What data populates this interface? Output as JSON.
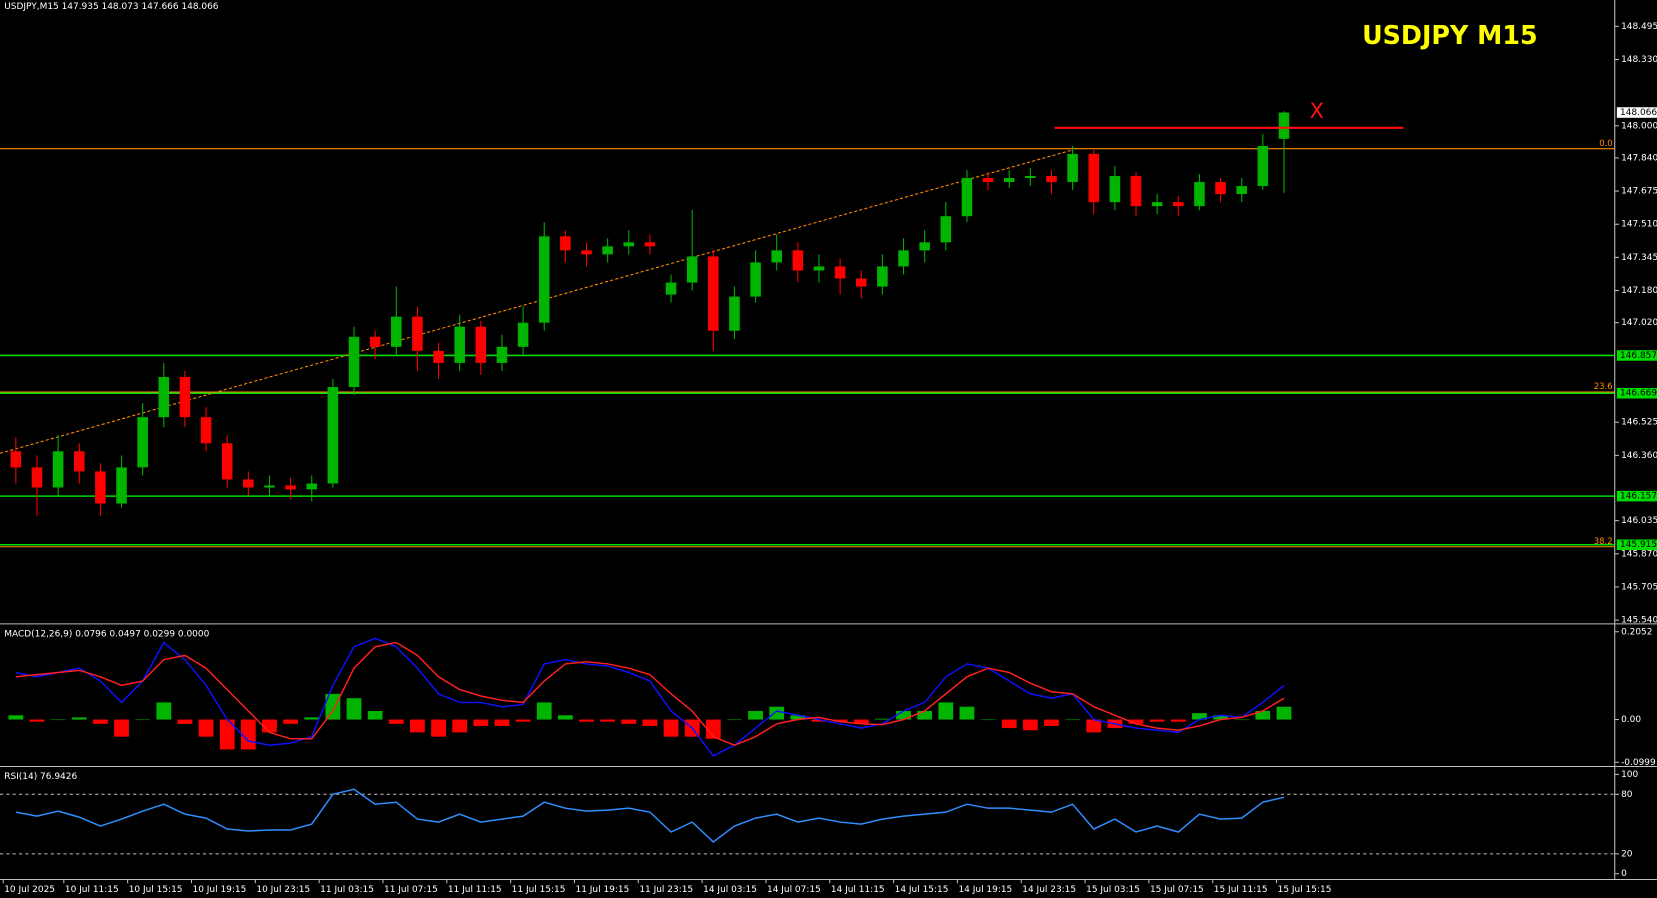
{
  "chart_data": {
    "type": "candlestick",
    "title": "USDJPY  M15",
    "header": "USDJPY,M15  147.935 148.073 147.666 148.066",
    "up_color": "#00b400",
    "down_color": "#ff0000",
    "ylim": [
      145.524,
      148.626
    ],
    "yticks": [
      148.495,
      {
        "value": 148.33,
        "label": "148.330"
      },
      {
        "value": 148,
        "label": "148.000"
      },
      {
        "value": 147.84,
        "label": "147.840"
      },
      147.675,
      {
        "value": 147.51,
        "label": "147.510"
      },
      147.345,
      {
        "value": 147.18,
        "label": "147.180"
      },
      {
        "value": 147.02,
        "label": "147.020"
      },
      146.525,
      {
        "value": 146.36,
        "label": "146.360"
      },
      146.035,
      {
        "value": 145.87,
        "label": "145.870"
      },
      145.705,
      {
        "value": 145.54,
        "label": "145.540"
      }
    ],
    "x_tick_labels": [
      "10 Jul 2025",
      "10 Jul 11:15",
      "10 Jul 15:15",
      "10 Jul 19:15",
      "10 Jul 23:15",
      "11 Jul 03:15",
      "11 Jul 07:15",
      "11 Jul 11:15",
      "11 Jul 15:15",
      "11 Jul 19:15",
      "11 Jul 23:15",
      "14 Jul 03:15",
      "14 Jul 07:15",
      "14 Jul 11:15",
      "14 Jul 15:15",
      "14 Jul 19:15",
      "14 Jul 23:15",
      "15 Jul 03:15",
      "15 Jul 07:15",
      "15 Jul 11:15",
      "15 Jul 15:15"
    ],
    "open": [
      146.38,
      146.3,
      146.2,
      146.38,
      146.28,
      146.12,
      146.3,
      146.55,
      146.75,
      146.55,
      146.42,
      146.24,
      146.2,
      146.21,
      146.19,
      146.22,
      146.7,
      146.95,
      146.9,
      147.05,
      146.88,
      146.82,
      147.0,
      146.82,
      146.9,
      147.02,
      147.45,
      147.38,
      147.36,
      147.4,
      147.42,
      147.16,
      147.22,
      147.35,
      146.98,
      147.15,
      147.32,
      147.38,
      147.28,
      147.3,
      147.24,
      147.2,
      147.3,
      147.38,
      147.42,
      147.55,
      147.74,
      147.72,
      147.74,
      147.75,
      147.72,
      147.86,
      147.62,
      147.75,
      147.6,
      147.62,
      147.6,
      147.72,
      147.66,
      147.7,
      147.935
    ],
    "high": [
      146.45,
      146.36,
      146.46,
      146.42,
      146.32,
      146.36,
      146.62,
      146.82,
      146.78,
      146.6,
      146.46,
      146.28,
      146.26,
      146.25,
      146.26,
      146.74,
      147.0,
      146.98,
      147.2,
      147.1,
      146.92,
      147.06,
      147.03,
      146.96,
      147.1,
      147.52,
      147.48,
      147.42,
      147.44,
      147.48,
      147.46,
      147.26,
      147.58,
      147.38,
      147.2,
      147.38,
      147.46,
      147.42,
      147.36,
      147.34,
      147.28,
      147.36,
      147.44,
      147.48,
      147.62,
      147.78,
      147.77,
      147.78,
      147.79,
      147.78,
      147.9,
      147.88,
      147.8,
      147.77,
      147.66,
      147.65,
      147.76,
      147.74,
      147.74,
      147.96,
      148.073
    ],
    "low": [
      146.22,
      146.06,
      146.16,
      146.22,
      146.06,
      146.1,
      146.26,
      146.5,
      146.5,
      146.38,
      146.2,
      146.16,
      146.16,
      146.14,
      146.13,
      146.2,
      146.66,
      146.84,
      146.86,
      146.78,
      146.74,
      146.78,
      146.76,
      146.78,
      146.86,
      146.98,
      147.32,
      147.3,
      147.32,
      147.36,
      147.36,
      147.12,
      147.18,
      146.88,
      146.94,
      147.12,
      147.28,
      147.22,
      147.22,
      147.16,
      147.14,
      147.16,
      147.26,
      147.32,
      147.38,
      147.52,
      147.68,
      147.69,
      147.7,
      147.66,
      147.68,
      147.56,
      147.58,
      147.55,
      147.56,
      147.55,
      147.58,
      147.62,
      147.62,
      147.68,
      147.666
    ],
    "close": [
      146.3,
      146.2,
      146.38,
      146.28,
      146.12,
      146.3,
      146.55,
      146.75,
      146.55,
      146.42,
      146.24,
      146.2,
      146.21,
      146.19,
      146.22,
      146.7,
      146.95,
      146.9,
      147.05,
      146.88,
      146.82,
      147.0,
      146.82,
      146.9,
      147.02,
      147.45,
      147.38,
      147.36,
      147.4,
      147.42,
      147.4,
      147.22,
      147.35,
      146.98,
      147.15,
      147.32,
      147.38,
      147.28,
      147.3,
      147.24,
      147.2,
      147.3,
      147.38,
      147.42,
      147.55,
      147.74,
      147.72,
      147.74,
      147.75,
      147.72,
      147.86,
      147.62,
      147.75,
      147.6,
      147.62,
      147.6,
      147.72,
      147.66,
      147.7,
      147.9,
      148.066
    ],
    "last_price": {
      "value": 148.066,
      "label": "148.066"
    },
    "levels": [
      146.857,
      146.669,
      146.157,
      145.915
    ],
    "level_color": "#00dd00",
    "fibo": [
      {
        "price": 147.886,
        "label": "0.0"
      },
      {
        "price": 146.675,
        "label": "23.6"
      },
      {
        "price": 145.905,
        "label": "38.2"
      }
    ],
    "fibo_color": "#ff8c00",
    "trendline": [
      146.37,
      147.88
    ],
    "resistance": 147.99,
    "resistance_color": "#ff1010",
    "annotation": "X",
    "macd": {
      "label": "MACD(12,26,9) 0.0796 0.0497 0.0299 0.0000",
      "ylim": [
        -0.106,
        0.22
      ],
      "yticks": [
        0.2052,
        {
          "value": 0,
          "label": "0.00"
        },
        -0.0999
      ],
      "lines": [
        {
          "color": "#1010ff",
          "values": [
            0.11,
            0.1,
            0.11,
            0.12,
            0.09,
            0.04,
            0.09,
            0.18,
            0.14,
            0.08,
            0.0,
            -0.05,
            -0.06,
            -0.055,
            -0.04,
            0.08,
            0.17,
            0.19,
            0.17,
            0.12,
            0.06,
            0.04,
            0.04,
            0.03,
            0.035,
            0.13,
            0.14,
            0.13,
            0.125,
            0.11,
            0.09,
            0.02,
            -0.02,
            -0.085,
            -0.06,
            -0.02,
            0.02,
            0.01,
            0.0,
            -0.01,
            -0.02,
            -0.01,
            0.02,
            0.04,
            0.1,
            0.13,
            0.12,
            0.09,
            0.06,
            0.05,
            0.06,
            0.0,
            -0.01,
            -0.02,
            -0.025,
            -0.03,
            0.0,
            0.01,
            0.005,
            0.04,
            0.0796
          ]
        },
        {
          "color": "#ff2020",
          "values": [
            0.1,
            0.105,
            0.11,
            0.115,
            0.1,
            0.08,
            0.09,
            0.14,
            0.15,
            0.12,
            0.07,
            0.02,
            -0.03,
            -0.045,
            -0.045,
            0.02,
            0.12,
            0.17,
            0.18,
            0.15,
            0.1,
            0.07,
            0.055,
            0.045,
            0.04,
            0.09,
            0.13,
            0.135,
            0.13,
            0.12,
            0.105,
            0.06,
            0.02,
            -0.04,
            -0.06,
            -0.04,
            -0.01,
            0.0,
            0.005,
            -0.005,
            -0.01,
            -0.012,
            0.0,
            0.02,
            0.06,
            0.1,
            0.12,
            0.11,
            0.085,
            0.065,
            0.06,
            0.03,
            0.01,
            -0.01,
            -0.02,
            -0.025,
            -0.015,
            0.0,
            0.005,
            0.02,
            0.0497
          ]
        }
      ],
      "histogram": {
        "up_color": "#00b400",
        "down_color": "#ff0000",
        "values": [
          0.01,
          -0.005,
          0,
          0.005,
          -0.01,
          -0.04,
          0,
          0.04,
          -0.01,
          -0.04,
          -0.07,
          -0.07,
          -0.03,
          -0.01,
          0.005,
          0.06,
          0.05,
          0.02,
          -0.01,
          -0.03,
          -0.04,
          -0.03,
          -0.015,
          -0.015,
          -0.005,
          0.04,
          0.01,
          -0.005,
          -0.005,
          -0.01,
          -0.015,
          -0.04,
          -0.04,
          -0.045,
          0,
          0.02,
          0.03,
          0.01,
          -0.005,
          -0.005,
          -0.01,
          0.002,
          0.02,
          0.02,
          0.04,
          0.03,
          0,
          -0.02,
          -0.025,
          -0.015,
          0,
          -0.03,
          -0.02,
          -0.01,
          -0.005,
          -0.005,
          0.015,
          0.01,
          0,
          0.02,
          0.0299
        ]
      }
    },
    "rsi": {
      "label": "RSI(14) 76.9426",
      "ylim": [
        -5.3,
        106.4
      ],
      "yticks": [
        100,
        80,
        20,
        0
      ],
      "levels": [
        80,
        20
      ],
      "color": "#2f8fff",
      "values": [
        62,
        58,
        63,
        57,
        48,
        55,
        63,
        70,
        60,
        56,
        45,
        43,
        44,
        44,
        50,
        80,
        85,
        70,
        72,
        55,
        52,
        60,
        52,
        55,
        58,
        72,
        66,
        63,
        64,
        66,
        62,
        42,
        52,
        32,
        48,
        56,
        60,
        52,
        56,
        52,
        50,
        55,
        58,
        60,
        62,
        70,
        66,
        66,
        64,
        62,
        70,
        45,
        55,
        42,
        48,
        42,
        60,
        55,
        56,
        72,
        76.9426
      ]
    }
  }
}
